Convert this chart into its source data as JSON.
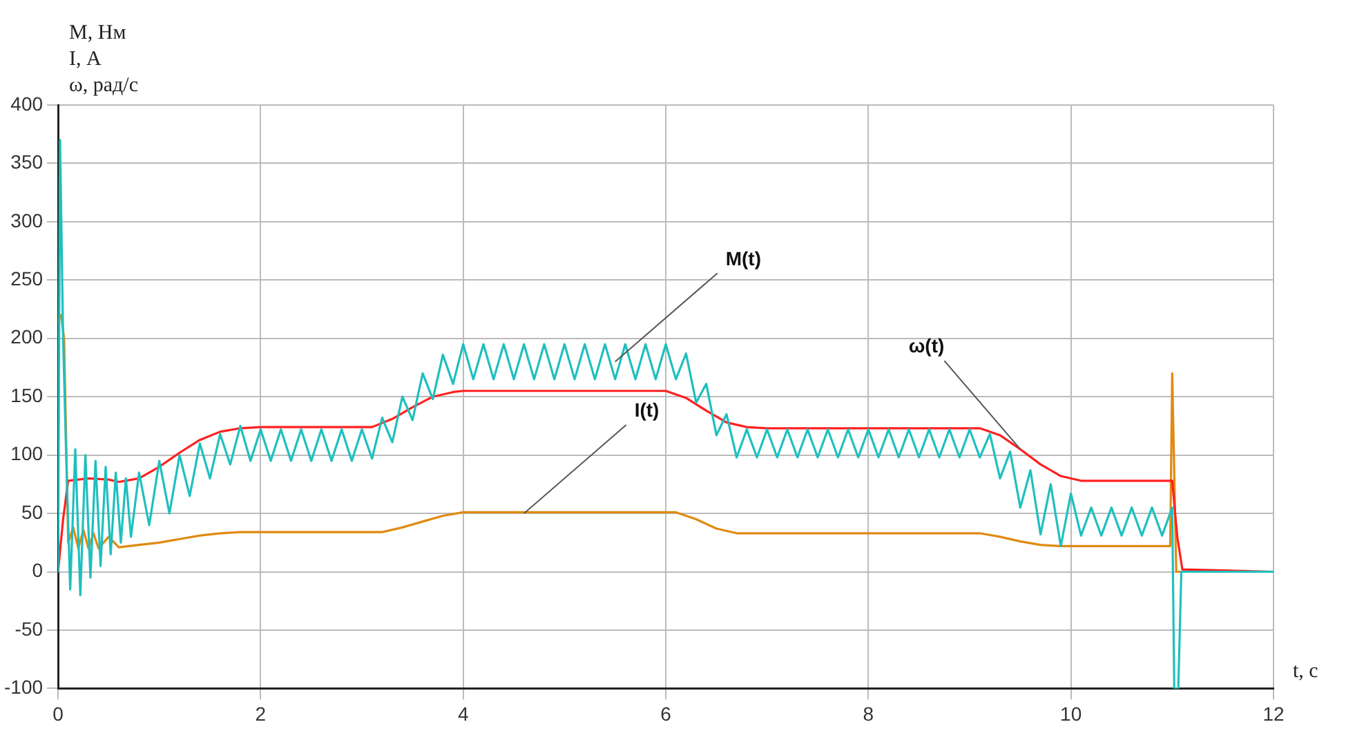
{
  "chart_data": {
    "type": "line",
    "xlabel": "t, с",
    "ylabel": "M, Нм\nI, А\nω, рад/с",
    "xlim": [
      0,
      12
    ],
    "xticks": [
      0,
      2,
      4,
      6,
      8,
      10,
      12
    ],
    "ylim": [
      -100,
      400
    ],
    "yticks": [
      -100,
      -50,
      0,
      50,
      100,
      150,
      200,
      250,
      300,
      350,
      400
    ],
    "grid": true,
    "legend": false,
    "marker": "none",
    "line_style": "solid",
    "series": [
      {
        "color": "#1fbfbf",
        "x": [
          0,
          0.02,
          0.05,
          0.08,
          0.12,
          0.17,
          0.22,
          0.27,
          0.32,
          0.37,
          0.42,
          0.47,
          0.52,
          0.57,
          0.62,
          0.67,
          0.72,
          0.8,
          0.9,
          1.0,
          1.1,
          1.2,
          1.3,
          1.4,
          1.5,
          1.6,
          1.7,
          1.8,
          1.9,
          2.0,
          2.1,
          2.2,
          2.3,
          2.4,
          2.5,
          2.6,
          2.7,
          2.8,
          2.9,
          3.0,
          3.1,
          3.2,
          3.3,
          3.4,
          3.5,
          3.6,
          3.7,
          3.8,
          3.9,
          4.0,
          4.1,
          4.2,
          4.3,
          4.4,
          4.5,
          4.6,
          4.7,
          4.8,
          4.9,
          5.0,
          5.1,
          5.2,
          5.3,
          5.4,
          5.5,
          5.6,
          5.7,
          5.8,
          5.9,
          6.0,
          6.1,
          6.2,
          6.3,
          6.4,
          6.5,
          6.6,
          6.7,
          6.8,
          6.9,
          7.0,
          7.1,
          7.2,
          7.3,
          7.4,
          7.5,
          7.6,
          7.7,
          7.8,
          7.9,
          8.0,
          8.1,
          8.2,
          8.3,
          8.4,
          8.5,
          8.6,
          8.7,
          8.8,
          8.9,
          9.0,
          9.1,
          9.2,
          9.3,
          9.4,
          9.5,
          9.6,
          9.7,
          9.8,
          9.9,
          10.0,
          10.1,
          10.2,
          10.3,
          10.4,
          10.5,
          10.6,
          10.7,
          10.8,
          10.9,
          11.0,
          11.02,
          11.06,
          11.09,
          12
        ],
        "values": [
          0,
          370,
          200,
          100,
          -15,
          105,
          -20,
          100,
          -5,
          95,
          5,
          90,
          15,
          85,
          25,
          80,
          30,
          85,
          40,
          95,
          50,
          100,
          65,
          110,
          80,
          118,
          92,
          125,
          95,
          122,
          95,
          122,
          95,
          122,
          95,
          122,
          95,
          122,
          95,
          122,
          97,
          132,
          111,
          150,
          130,
          170,
          148,
          186,
          161,
          195,
          165,
          195,
          165,
          195,
          165,
          195,
          165,
          195,
          165,
          195,
          165,
          195,
          165,
          195,
          165,
          195,
          165,
          195,
          165,
          195,
          165,
          187,
          145,
          161,
          117,
          135,
          98,
          122,
          98,
          122,
          98,
          122,
          98,
          122,
          98,
          122,
          98,
          122,
          98,
          122,
          98,
          122,
          98,
          122,
          98,
          122,
          98,
          122,
          98,
          122,
          98,
          118,
          80,
          103,
          55,
          87,
          32,
          75,
          22,
          67,
          31,
          55,
          31,
          55,
          31,
          55,
          31,
          55,
          31,
          55,
          -100,
          -100,
          0,
          0
        ]
      },
      {
        "color": "#ff2020",
        "x": [
          0,
          0.05,
          0.1,
          0.3,
          0.5,
          0.6,
          0.8,
          1.0,
          1.2,
          1.4,
          1.6,
          1.8,
          2.0,
          3.1,
          3.3,
          3.5,
          3.7,
          3.9,
          4.0,
          6.0,
          6.2,
          6.4,
          6.6,
          6.8,
          7.0,
          9.1,
          9.3,
          9.5,
          9.7,
          9.9,
          10.1,
          11.0,
          11.05,
          11.1,
          12
        ],
        "values": [
          0,
          45,
          78,
          80,
          79,
          77,
          80,
          90,
          102,
          113,
          120,
          123,
          124,
          124,
          131,
          141,
          150,
          154,
          155,
          155,
          149,
          138,
          128,
          124,
          123,
          123,
          117,
          105,
          92,
          82,
          78,
          78,
          30,
          2,
          0
        ]
      },
      {
        "color": "#e08a10",
        "x": [
          0,
          0.03,
          0.06,
          0.1,
          0.15,
          0.2,
          0.25,
          0.3,
          0.35,
          0.4,
          0.5,
          0.6,
          0.8,
          1.0,
          1.2,
          1.4,
          1.6,
          1.8,
          3.2,
          3.4,
          3.6,
          3.8,
          4.0,
          6.1,
          6.3,
          6.5,
          6.7,
          9.1,
          9.3,
          9.5,
          9.7,
          9.9,
          10.98,
          11.0,
          11.04,
          12
        ],
        "values": [
          215,
          220,
          200,
          25,
          38,
          20,
          36,
          20,
          33,
          20,
          30,
          21,
          23,
          25,
          28,
          31,
          33,
          34,
          34,
          38,
          43,
          48,
          51,
          51,
          45,
          37,
          33,
          33,
          30,
          26,
          23,
          22,
          22,
          170,
          0,
          0
        ]
      }
    ],
    "annotations": [
      {
        "text": "M(t)",
        "x": 5.5,
        "y": 180
      },
      {
        "text": "I(t)",
        "x": 4.6,
        "y": 50
      },
      {
        "text": "ω(t)",
        "x": 9.5,
        "y": 105
      }
    ]
  }
}
